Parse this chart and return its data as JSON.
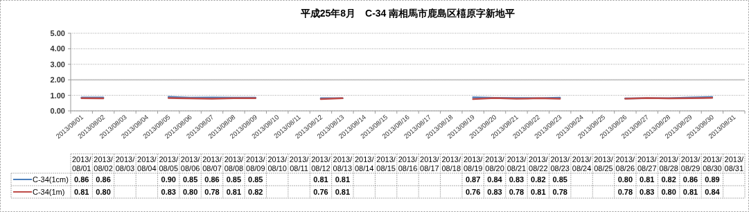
{
  "chart_data": {
    "type": "line",
    "title": "平成25年8月　C-34 南相馬市鹿島区橲原字新地平",
    "categories": [
      "2013/08/01",
      "2013/08/02",
      "2013/08/03",
      "2013/08/04",
      "2013/08/05",
      "2013/08/06",
      "2013/08/07",
      "2013/08/08",
      "2013/08/09",
      "2013/08/10",
      "2013/08/11",
      "2013/08/12",
      "2013/08/13",
      "2013/08/14",
      "2013/08/15",
      "2013/08/16",
      "2013/08/17",
      "2013/08/18",
      "2013/08/19",
      "2013/08/20",
      "2013/08/21",
      "2013/08/22",
      "2013/08/23",
      "2013/08/24",
      "2013/08/25",
      "2013/08/26",
      "2013/08/27",
      "2013/08/28",
      "2013/08/29",
      "2013/08/30",
      "2013/08/31"
    ],
    "series": [
      {
        "name": "C-34(1cm)",
        "color": "#4a7ebb",
        "values": [
          0.86,
          0.86,
          null,
          null,
          0.9,
          0.85,
          0.86,
          0.85,
          0.85,
          null,
          null,
          0.81,
          0.81,
          null,
          null,
          null,
          null,
          null,
          0.87,
          0.84,
          0.83,
          0.82,
          0.85,
          null,
          null,
          0.8,
          0.81,
          0.82,
          0.86,
          0.89,
          null
        ],
        "value_labels": [
          "0.86",
          "0.86",
          null,
          null,
          "0.90",
          "0.85",
          "0.86",
          "0.85",
          "0.85",
          null,
          null,
          "0.81",
          "0.81",
          null,
          null,
          null,
          null,
          null,
          "0.87",
          "0.84",
          "0.83",
          "0.82",
          "0.85",
          null,
          null,
          "0.80",
          "0.81",
          "0.82",
          "0.86",
          "0.89",
          null
        ]
      },
      {
        "name": "C-34(1m)",
        "color": "#be4b48",
        "values": [
          0.81,
          0.8,
          null,
          null,
          0.83,
          0.8,
          0.78,
          0.81,
          0.82,
          null,
          null,
          0.76,
          0.81,
          null,
          null,
          null,
          null,
          null,
          0.76,
          0.83,
          0.78,
          0.81,
          0.78,
          null,
          null,
          0.78,
          0.83,
          0.8,
          0.81,
          0.84,
          null
        ],
        "value_labels": [
          "0.81",
          "0.80",
          null,
          null,
          "0.83",
          "0.80",
          "0.78",
          "0.81",
          "0.82",
          null,
          null,
          "0.76",
          "0.81",
          null,
          null,
          null,
          null,
          null,
          "0.76",
          "0.83",
          "0.78",
          "0.81",
          "0.78",
          null,
          null,
          "0.78",
          "0.83",
          "0.80",
          "0.81",
          "0.84",
          null
        ]
      }
    ],
    "ylim": [
      0,
      5
    ],
    "yticks": [
      {
        "value": 0,
        "label": "0.00"
      },
      {
        "value": 1,
        "label": "1.00"
      },
      {
        "value": 2,
        "label": "2.00"
      },
      {
        "value": 3,
        "label": "3.00"
      },
      {
        "value": 4,
        "label": "4.00"
      },
      {
        "value": 5,
        "label": "5.00"
      }
    ],
    "grid": "y",
    "legend": "bottom left",
    "ref_lines": [
      {
        "axis": "y",
        "value": 2,
        "color": "#c8c8c8"
      }
    ]
  }
}
